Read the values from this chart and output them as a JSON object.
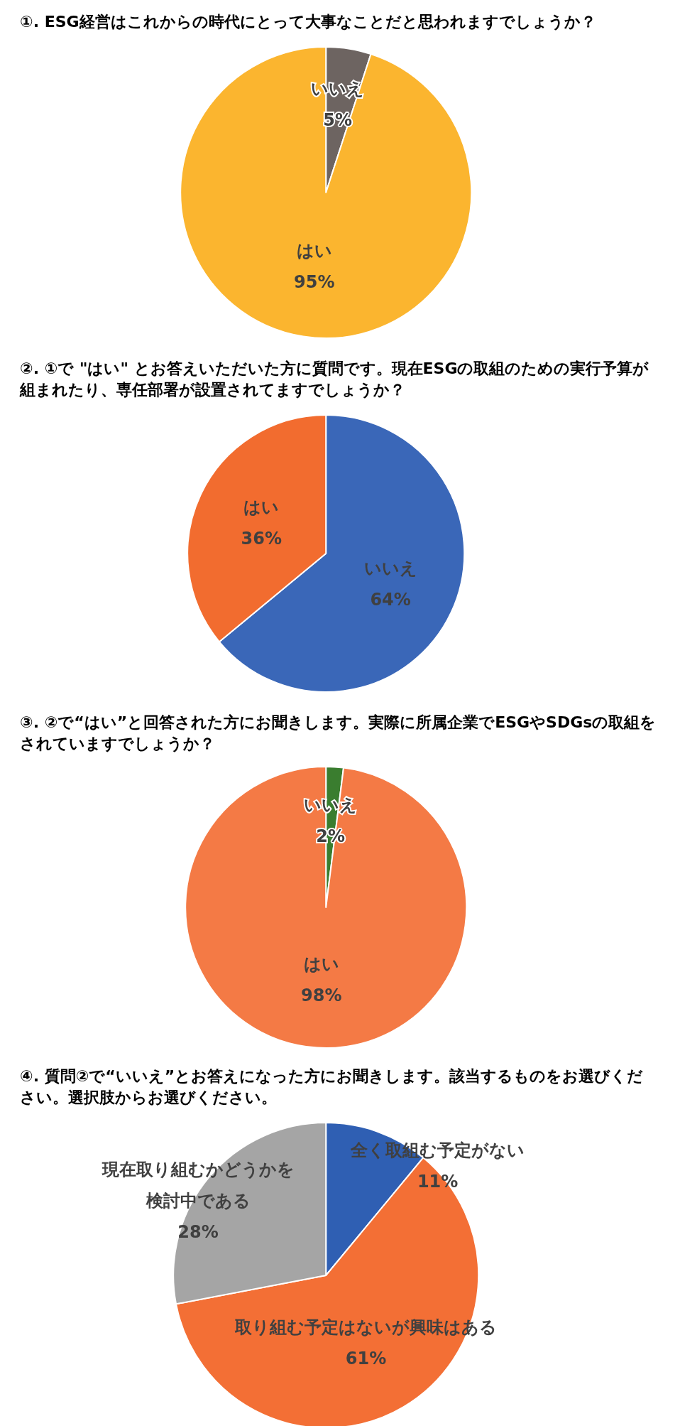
{
  "chart_data": [
    {
      "type": "pie",
      "title": "①. ESG経営はこれからの時代にとって大事なことだと思われますでしょうか？",
      "categories": [
        "いいえ",
        "はい"
      ],
      "values": [
        5,
        95
      ],
      "colors": [
        "#6d6461",
        "#fbb52f"
      ],
      "value_labels": [
        "5%",
        "95%"
      ]
    },
    {
      "type": "pie",
      "title": "②. ①で \"はい\" とお答えいただいた方に質問です。現在ESGの取組のための実行予算が組まれたり、専任部署が設置されてますでしょうか？",
      "categories": [
        "いいえ",
        "はい"
      ],
      "values": [
        64,
        36
      ],
      "colors": [
        "#3a67b8",
        "#f26c2f"
      ],
      "value_labels": [
        "64%",
        "36%"
      ]
    },
    {
      "type": "pie",
      "title": "③. ②で“はい”と回答された方にお聞きします。実際に所属企業でESGやSDGsの取組をされていますでしょうか？",
      "categories": [
        "いいえ",
        "はい"
      ],
      "values": [
        2,
        98
      ],
      "colors": [
        "#3a7d2f",
        "#f47a45"
      ],
      "value_labels": [
        "2%",
        "98%"
      ]
    },
    {
      "type": "pie",
      "title": "④. 質問②で“いいえ”とお答えになった方にお聞きします。該当するものをお選びください。選択肢からお選びください。",
      "categories": [
        "全く取組む予定がない",
        "取り組む予定はないが興味はある",
        "現在取り組むかどうかを検討中である"
      ],
      "values": [
        11,
        61,
        28
      ],
      "colors": [
        "#2f5fb3",
        "#f36f35",
        "#a5a5a5"
      ],
      "value_labels": [
        "11%",
        "61%",
        "28%"
      ]
    }
  ]
}
